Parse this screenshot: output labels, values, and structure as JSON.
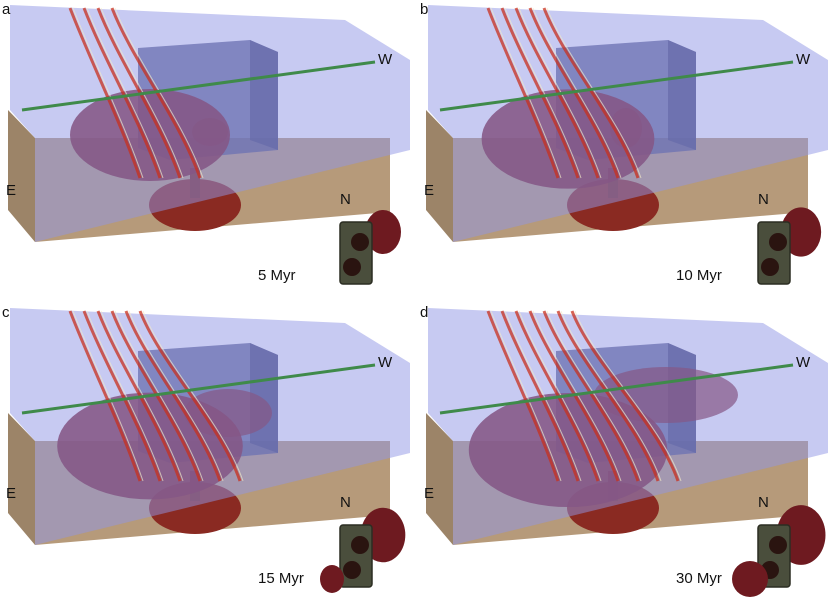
{
  "figure": {
    "panels": [
      {
        "letter": "a",
        "time": "5 Myr",
        "west": "W",
        "east": "E",
        "north": "N",
        "stage": 1
      },
      {
        "letter": "b",
        "time": "10 Myr",
        "west": "W",
        "east": "E",
        "north": "N",
        "stage": 2
      },
      {
        "letter": "c",
        "time": "15 Myr",
        "west": "W",
        "east": "E",
        "north": "N",
        "stage": 3
      },
      {
        "letter": "d",
        "time": "30 Myr",
        "west": "W",
        "east": "E",
        "north": "N",
        "stage": 4
      }
    ]
  },
  "colors": {
    "water_plane": "#8f95e6",
    "crust": "#b69a7a",
    "plume": "#7a1826",
    "plume_stem": "#8a2a22",
    "block": "#4b4f80",
    "line": "#3f8a4a",
    "map_block": "#4a4e3c",
    "map_plume": "#6e1a20"
  }
}
